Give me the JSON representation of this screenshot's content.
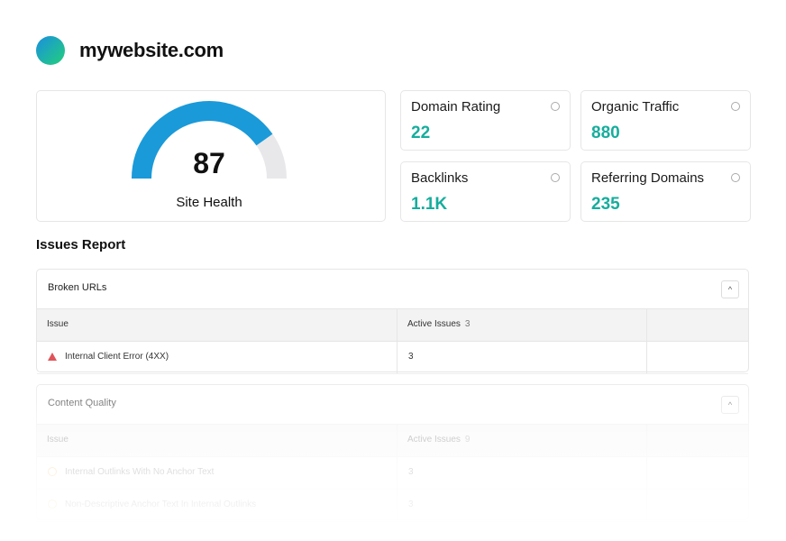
{
  "header": {
    "site": "mywebsite.com"
  },
  "site_health": {
    "score": 87,
    "label": "Site Health"
  },
  "metrics": [
    {
      "label": "Domain Rating",
      "value": 22
    },
    {
      "label": "Organic Traffic",
      "value": 880
    },
    {
      "label": "Backlinks",
      "value": "1.1K"
    },
    {
      "label": "Referring Domains",
      "value": 235
    }
  ],
  "issues_report": {
    "title": "Issues Report",
    "sections": [
      {
        "title": "Broken URLs",
        "columns": [
          "Issue",
          "Active Issues"
        ],
        "active_count": 3,
        "rows": [
          {
            "issue": "Internal Client Error (4XX)",
            "count": 3
          }
        ]
      },
      {
        "title": "Content Quality",
        "columns": [
          "Issue",
          "Active Issues"
        ],
        "active_count": 9,
        "rows": [
          {
            "issue": "Internal Outlinks With No Anchor Text",
            "count": 3
          },
          {
            "issue": "Non-Descriptive Anchor Text In Internal Outlinks",
            "count": 3
          }
        ]
      }
    ]
  }
}
